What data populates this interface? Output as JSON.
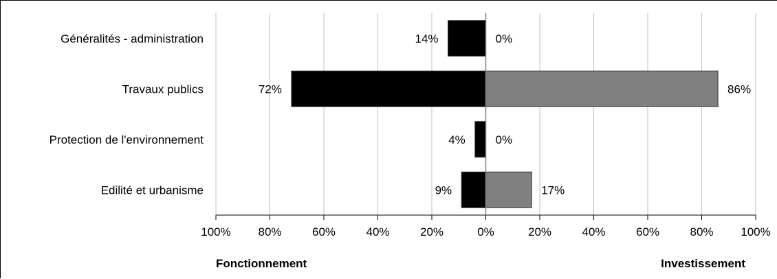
{
  "chart_data": {
    "type": "bar",
    "orientation": "horizontal-diverging",
    "categories": [
      "Généralités - administration",
      "Travaux publics",
      "Protection de l'environnement",
      "Edilité et urbanisme"
    ],
    "series": [
      {
        "name": "Fonctionnement",
        "direction": "left",
        "color": "#000000",
        "values": [
          14,
          72,
          4,
          9
        ],
        "labels": [
          "14%",
          "72%",
          "4%",
          "9%"
        ]
      },
      {
        "name": "Investissement",
        "direction": "right",
        "color": "#808080",
        "values": [
          0,
          86,
          0,
          17
        ],
        "labels": [
          "0%",
          "86%",
          "0%",
          "17%"
        ]
      }
    ],
    "x_ticks": [
      "100%",
      "80%",
      "60%",
      "40%",
      "20%",
      "0%",
      "20%",
      "40%",
      "60%",
      "80%",
      "100%"
    ],
    "xlim": [
      -100,
      100
    ],
    "grid": true,
    "legend": "none",
    "bottom_left_label": "Fonctionnement",
    "bottom_right_label": "Investissement"
  }
}
